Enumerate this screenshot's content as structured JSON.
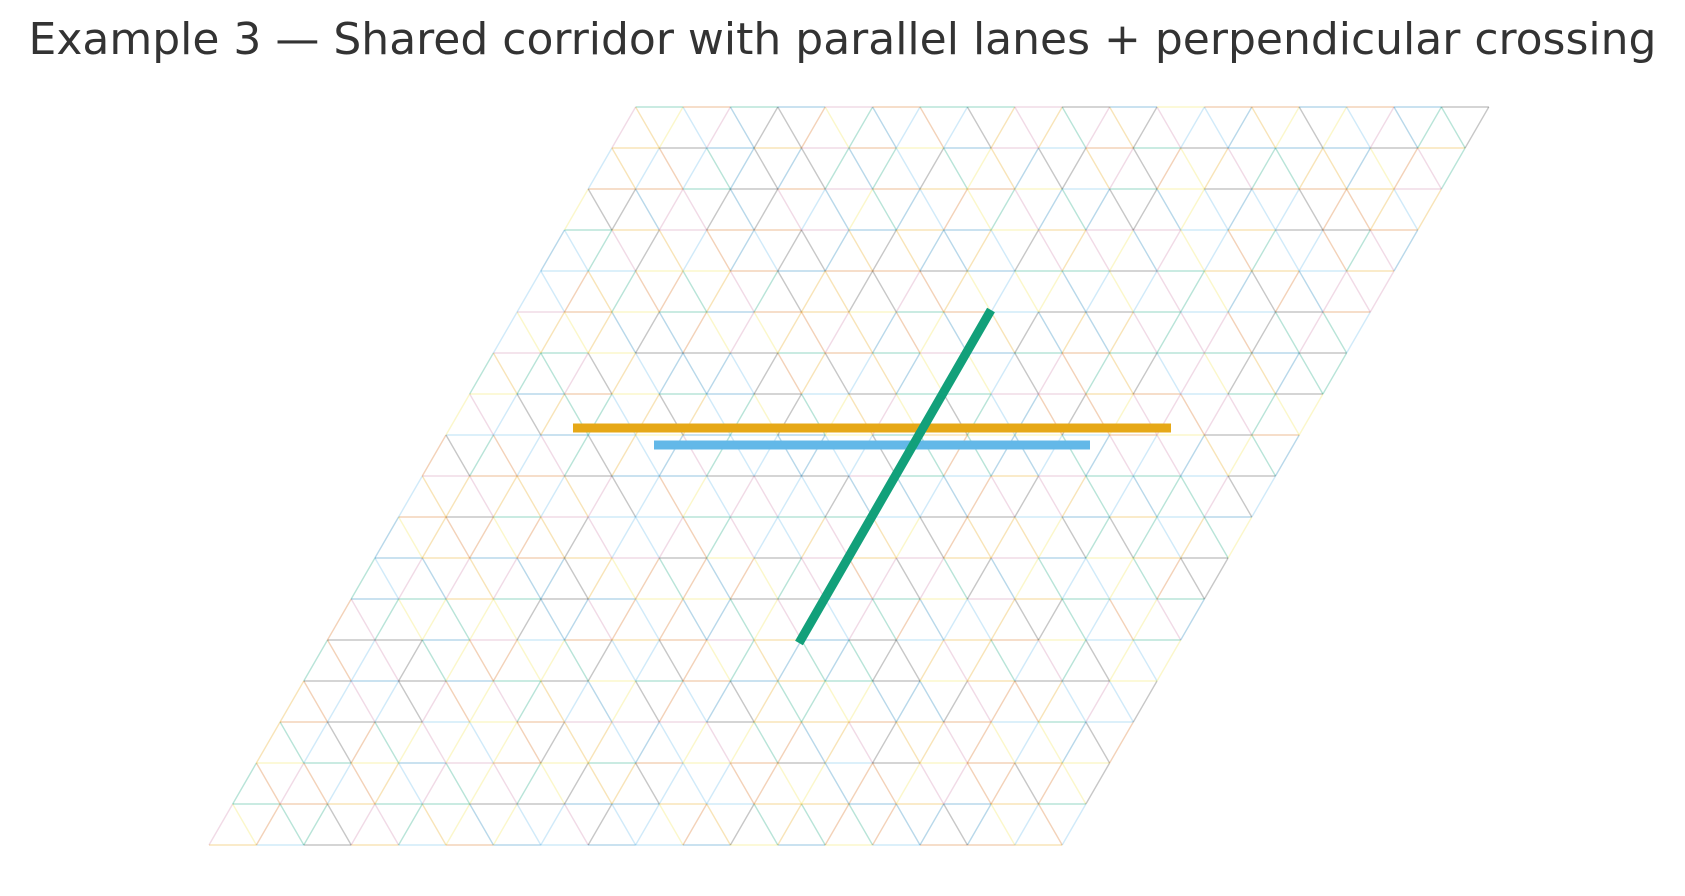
{
  "title": "Example 3 — Shared corridor with parallel lanes + perpendicular crossing",
  "palette": [
    "#E69F00",
    "#56B4E9",
    "#009E73",
    "#F0E442",
    "#0072B2",
    "#D55E00",
    "#CC79A7",
    "#000000"
  ],
  "grid": {
    "type": "triangular",
    "rows": 18,
    "columns": 18,
    "shape": "parallelogram"
  },
  "lines": [
    {
      "name": "lane-orange",
      "color": "#E6A817"
    },
    {
      "name": "lane-blue",
      "color": "#63B8E8"
    },
    {
      "name": "crossing-green",
      "color": "#12A07A"
    }
  ]
}
